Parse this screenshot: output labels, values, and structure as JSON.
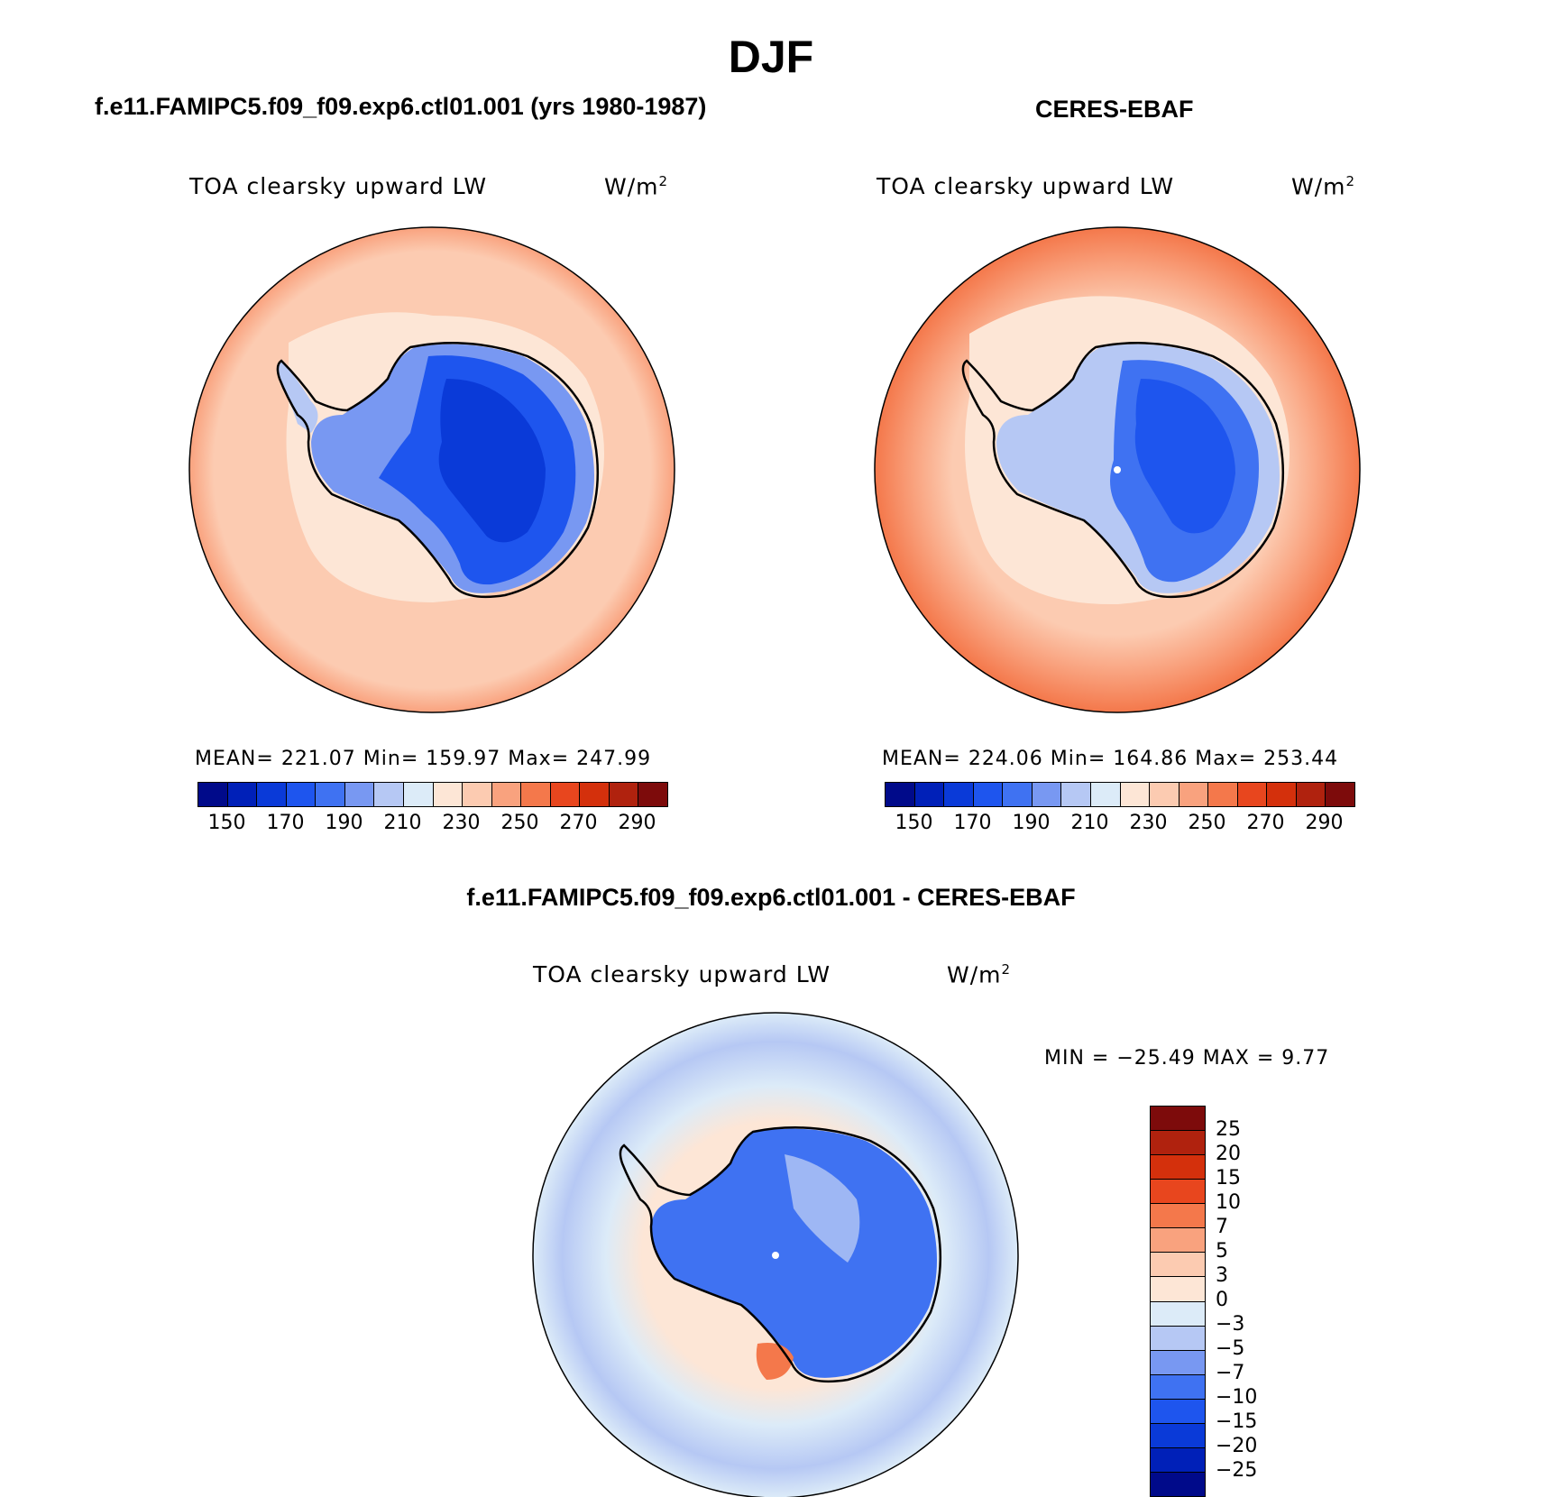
{
  "figure": {
    "title": "DJF"
  },
  "panels": [
    {
      "title": "f.e11.FAMIPC5.f09_f09.exp6.ctl01.001 (yrs 1980-1987)",
      "variable": "TOA clearsky upward LW",
      "units": "W/m",
      "units_exp": "2",
      "stats": "MEAN= 221.07   Min= 159.97   Max= 247.99"
    },
    {
      "title": "CERES-EBAF",
      "variable": "TOA clearsky upward LW",
      "units": "W/m",
      "units_exp": "2",
      "stats": "MEAN= 224.06   Min= 164.86   Max= 253.44"
    },
    {
      "title": "f.e11.FAMIPC5.f09_f09.exp6.ctl01.001 - CERES-EBAF",
      "variable": "TOA clearsky upward LW",
      "units": "W/m",
      "units_exp": "2",
      "stats": "MIN = −25.49  MAX =    9.77"
    }
  ],
  "colorbar_abs": {
    "ticks": [
      "150",
      "170",
      "190",
      "210",
      "230",
      "250",
      "270",
      "290"
    ],
    "colors": [
      "#000a8a",
      "#0020b8",
      "#0a3ad8",
      "#1e55ee",
      "#3f72f2",
      "#7898f2",
      "#b6c8f4",
      "#dcebf8",
      "#fde6d6",
      "#fccbb1",
      "#f9a27e",
      "#f4784b",
      "#e8461e",
      "#d4300c",
      "#b0220e",
      "#7d0b0b"
    ]
  },
  "colorbar_diff": {
    "ticks": [
      "25",
      "20",
      "15",
      "10",
      "7",
      "5",
      "3",
      "0",
      "−3",
      "−5",
      "−7",
      "−10",
      "−15",
      "−20",
      "−25"
    ],
    "colors": [
      "#7d0b0b",
      "#b0220e",
      "#d4300c",
      "#e8461e",
      "#f4784b",
      "#f9a27e",
      "#fccbb1",
      "#fde6d6",
      "#dcebf8",
      "#b6c8f4",
      "#7898f2",
      "#3f72f2",
      "#1e55ee",
      "#0a3ad8",
      "#0020b8",
      "#000a8a"
    ]
  },
  "chart_data": [
    {
      "type": "heatmap",
      "title": "f.e11.FAMIPC5.f09_f09.exp6.ctl01.001 (yrs 1980-1987)",
      "variable": "TOA clearsky upward LW",
      "units": "W/m2",
      "projection": "south polar stereographic",
      "mean": 221.07,
      "min": 159.97,
      "max": 247.99,
      "levels": [
        150,
        160,
        170,
        180,
        190,
        200,
        210,
        220,
        230,
        240,
        250,
        260,
        270,
        280,
        290
      ],
      "colorbar_ticks": [
        150,
        170,
        190,
        210,
        230,
        250,
        270,
        290
      ]
    },
    {
      "type": "heatmap",
      "title": "CERES-EBAF",
      "variable": "TOA clearsky upward LW",
      "units": "W/m2",
      "projection": "south polar stereographic",
      "mean": 224.06,
      "min": 164.86,
      "max": 253.44,
      "levels": [
        150,
        160,
        170,
        180,
        190,
        200,
        210,
        220,
        230,
        240,
        250,
        260,
        270,
        280,
        290
      ],
      "colorbar_ticks": [
        150,
        170,
        190,
        210,
        230,
        250,
        270,
        290
      ]
    },
    {
      "type": "heatmap",
      "title": "f.e11.FAMIPC5.f09_f09.exp6.ctl01.001 - CERES-EBAF",
      "variable": "TOA clearsky upward LW",
      "units": "W/m2",
      "projection": "south polar stereographic",
      "min": -25.49,
      "max": 9.77,
      "levels": [
        -25,
        -20,
        -15,
        -10,
        -7,
        -5,
        -3,
        0,
        3,
        5,
        7,
        10,
        15,
        20,
        25
      ]
    }
  ]
}
